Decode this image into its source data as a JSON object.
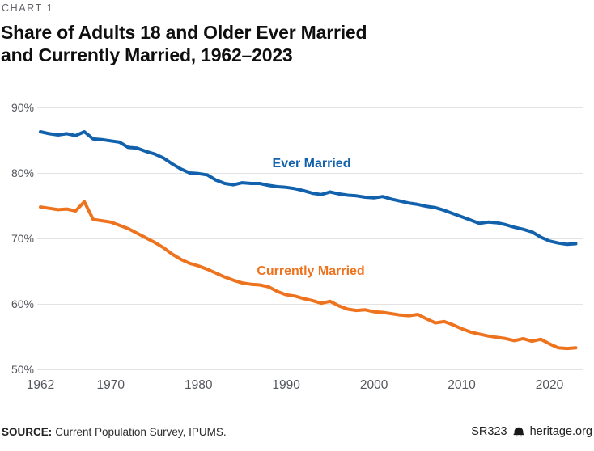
{
  "header": {
    "kicker": "CHART 1",
    "title_line1": "Share of Adults 18 and Older Ever Married",
    "title_line2": "and Currently Married, 1962–2023"
  },
  "footer": {
    "source_label": "SOURCE:",
    "source_text": "Current Population Survey, IPUMS.",
    "report_id": "SR323",
    "bell_icon": "heritage-liberty-bell",
    "site": "heritage.org"
  },
  "chart_data": {
    "type": "line",
    "title": "Share of Adults 18 and Older Ever Married and Currently Married, 1962–2023",
    "xlim": [
      1962,
      2023
    ],
    "ylim": [
      50,
      90
    ],
    "grid": "horizontal",
    "legend": "inline-labels",
    "x_start_year": 1962,
    "x_tick_values": [
      1962,
      1970,
      1980,
      1990,
      2000,
      2010,
      2020
    ],
    "x_tick_labels": [
      "1962",
      "1970",
      "1980",
      "1990",
      "2000",
      "2010",
      "2020"
    ],
    "y_tick_values": [
      90,
      80,
      70,
      60,
      50
    ],
    "y_tick_labels": [
      "90%",
      "80%",
      "70%",
      "60%",
      "50%"
    ],
    "colors": {
      "ever_married": "#1261AC",
      "currently_married": "#EE731E",
      "gridline": "#E3E3E3",
      "axis_text": "#53565B"
    },
    "series": [
      {
        "name": "Ever Married",
        "color": "#1261AC",
        "values": [
          86.3,
          86.0,
          85.8,
          86.0,
          85.7,
          86.3,
          85.2,
          85.1,
          84.9,
          84.7,
          83.9,
          83.8,
          83.3,
          82.9,
          82.3,
          81.4,
          80.6,
          80.0,
          79.9,
          79.7,
          78.9,
          78.4,
          78.2,
          78.5,
          78.4,
          78.4,
          78.1,
          77.9,
          77.8,
          77.6,
          77.3,
          76.9,
          76.7,
          77.1,
          76.8,
          76.6,
          76.5,
          76.3,
          76.2,
          76.4,
          76.0,
          75.7,
          75.4,
          75.2,
          74.9,
          74.7,
          74.3,
          73.8,
          73.3,
          72.8,
          72.3,
          72.5,
          72.4,
          72.1,
          71.7,
          71.4,
          71.0,
          70.2,
          69.6,
          69.3,
          69.1,
          69.2
        ]
      },
      {
        "name": "Currently Married",
        "color": "#EE731E",
        "values": [
          74.8,
          74.6,
          74.4,
          74.5,
          74.2,
          75.6,
          72.9,
          72.7,
          72.5,
          72.0,
          71.5,
          70.8,
          70.1,
          69.4,
          68.6,
          67.6,
          66.8,
          66.2,
          65.8,
          65.3,
          64.7,
          64.1,
          63.6,
          63.2,
          63.0,
          62.9,
          62.6,
          61.9,
          61.4,
          61.2,
          60.8,
          60.5,
          60.1,
          60.4,
          59.7,
          59.2,
          59.0,
          59.1,
          58.8,
          58.7,
          58.5,
          58.3,
          58.2,
          58.4,
          57.7,
          57.1,
          57.3,
          56.8,
          56.2,
          55.7,
          55.4,
          55.1,
          54.9,
          54.7,
          54.4,
          54.7,
          54.3,
          54.6,
          53.9,
          53.3,
          53.2,
          53.3
        ]
      }
    ]
  }
}
